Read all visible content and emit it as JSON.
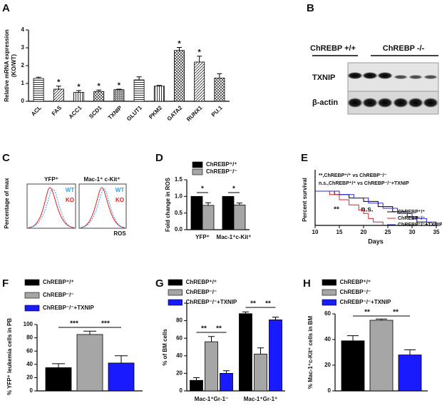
{
  "chart_data": [
    {
      "type": "bar",
      "panel": "A",
      "ylabel": [
        "Relative mRNA expression",
        "(KO/WT)"
      ],
      "categories": [
        "ACL",
        "FAS",
        "ACC1",
        "SCD1",
        "TXNIP",
        "GLUT1",
        "PKM2",
        "GATA2",
        "RUNX1",
        "PU.1"
      ],
      "values": [
        1.28,
        0.68,
        0.5,
        0.55,
        0.65,
        1.2,
        0.85,
        2.85,
        2.2,
        1.3
      ],
      "errors": [
        0.07,
        0.17,
        0.1,
        0.08,
        0.03,
        0.17,
        0.04,
        0.17,
        0.33,
        0.25
      ],
      "color": "#000000",
      "ylim": [
        0,
        4
      ],
      "yticks": [
        0,
        1,
        2,
        3,
        4
      ],
      "annotations": [
        "*",
        "*",
        "*",
        "*",
        "*",
        "*"
      ]
    },
    {
      "type": "bar",
      "panel": "D",
      "ylabel": "Fold change in ROS",
      "categories": [
        "YFP⁺",
        "Mac-1⁺c-Kit⁺"
      ],
      "series": [
        {
          "name": "ChREBP⁺/⁺",
          "color": "#000000",
          "values": [
            1.0,
            1.0
          ]
        },
        {
          "name": "ChREBP⁻/⁻",
          "color": "#a6a6a6",
          "values": [
            0.73,
            0.74
          ],
          "errors": [
            0.08,
            0.06
          ]
        }
      ],
      "ylim": [
        0,
        1.5
      ],
      "yticks": [
        {
          "value": 0,
          "label": "0.0"
        },
        0.5,
        {
          "value": 1,
          "label": "1.0"
        },
        1.5
      ],
      "annotations": [
        "*",
        "*"
      ]
    },
    {
      "type": "line",
      "panel": "E",
      "ylabel": "Percent survival",
      "xlabel": "Days",
      "series": [
        {
          "name": "ChREBP⁺/⁺",
          "color": "#000000",
          "x": [
            10,
            14,
            14,
            17,
            17,
            20,
            20,
            23,
            23,
            26,
            26,
            29,
            29,
            31,
            31,
            33,
            33
          ],
          "values": [
            100,
            100,
            90,
            90,
            80,
            80,
            70,
            70,
            55,
            55,
            40,
            40,
            25,
            25,
            10,
            10,
            0
          ]
        },
        {
          "name": "ChREBP⁻/⁻",
          "color": "#e02020",
          "x": [
            10,
            13,
            13,
            15,
            15,
            17,
            17,
            19,
            19,
            20,
            20,
            21,
            21,
            22,
            22,
            24,
            24
          ],
          "values": [
            100,
            100,
            90,
            90,
            75,
            75,
            60,
            60,
            45,
            45,
            35,
            35,
            20,
            20,
            10,
            10,
            0
          ]
        },
        {
          "name": "ChREBP⁻/⁻+TXNIP",
          "color": "#2a2ad8",
          "x": [
            10,
            15,
            15,
            18,
            18,
            21,
            21,
            24,
            24,
            27,
            27,
            30,
            30,
            33,
            33,
            35,
            35
          ],
          "values": [
            100,
            100,
            90,
            90,
            80,
            80,
            65,
            65,
            50,
            50,
            35,
            35,
            20,
            20,
            10,
            10,
            0
          ]
        }
      ],
      "xlim": [
        10,
        35
      ],
      "xticks": [
        10,
        15,
        20,
        25,
        30,
        35
      ],
      "ylim": [
        0,
        100
      ],
      "annotations": [
        "**,ChREBP⁺/⁺ vs ChREBP⁻/⁻",
        "n.s.,ChREBP⁺/⁺ vs ChREBP⁻/⁻+TXNIP",
        "**",
        "n.s."
      ]
    },
    {
      "type": "bar",
      "panel": "F",
      "ylabel": "% YFP⁺ leukemia cells in PB",
      "series": [
        {
          "name": "ChREBP⁺/⁺",
          "color": "#000000",
          "values": [
            35
          ],
          "errors": [
            6
          ]
        },
        {
          "name": "ChREBP⁻/⁻",
          "color": "#a6a6a6",
          "values": [
            85
          ],
          "errors": [
            5
          ]
        },
        {
          "name": "ChREBP⁻/⁻+TXNIP",
          "color": "#1a1aff",
          "values": [
            42
          ],
          "errors": [
            11
          ]
        }
      ],
      "ylim": [
        0,
        100
      ],
      "yticks": [
        0,
        20,
        40,
        60,
        80,
        100
      ],
      "annotations": [
        "***",
        "***"
      ]
    },
    {
      "type": "bar",
      "panel": "G",
      "ylabel": "% of BM cells",
      "categories": [
        "Mac-1⁺Gr-1⁻",
        "Mac-1⁺Gr-1⁺"
      ],
      "series": [
        {
          "name": "ChREBP⁺/⁺",
          "color": "#000000",
          "values": [
            12,
            88
          ],
          "errors": [
            3,
            2
          ]
        },
        {
          "name": "ChREBP⁻/⁻",
          "color": "#a6a6a6",
          "values": [
            56,
            42
          ],
          "errors": [
            6,
            7
          ]
        },
        {
          "name": "ChREBP⁻/⁻+TXNIP",
          "color": "#1a1aff",
          "values": [
            20,
            81
          ],
          "errors": [
            3,
            3
          ]
        }
      ],
      "ylim": [
        0,
        100
      ],
      "yticks": [
        0,
        20,
        40,
        60,
        80,
        100
      ],
      "annotations": [
        "**",
        "**",
        "**",
        "**"
      ]
    },
    {
      "type": "bar",
      "panel": "H",
      "ylabel": "% Mac-1⁺c-Kit⁺ cells in BM",
      "series": [
        {
          "name": "ChREBP⁺/⁺",
          "color": "#000000",
          "values": [
            39
          ],
          "errors": [
            4
          ]
        },
        {
          "name": "ChREBP⁻/⁻",
          "color": "#a6a6a6",
          "values": [
            55
          ],
          "errors": [
            1
          ]
        },
        {
          "name": "ChREBP⁻/⁻+TXNIP",
          "color": "#1a1aff",
          "values": [
            28
          ],
          "errors": [
            4
          ]
        }
      ],
      "ylim": [
        0,
        60
      ],
      "yticks": [
        0,
        20,
        40,
        60
      ],
      "annotations": [
        "**",
        "**"
      ]
    }
  ],
  "blot": {
    "panel": "B",
    "groups": [
      "ChREBP +/+",
      "ChREBP -/-"
    ],
    "rows": [
      "TXNIP",
      "β-actin"
    ]
  },
  "flow": {
    "panel": "C",
    "panels": [
      "YFP⁺",
      "Mac-1⁺ c-Kit⁺"
    ],
    "legend": [
      "WT",
      "KO"
    ],
    "ylabel": "Percentage of max",
    "xlabel": "ROS"
  }
}
